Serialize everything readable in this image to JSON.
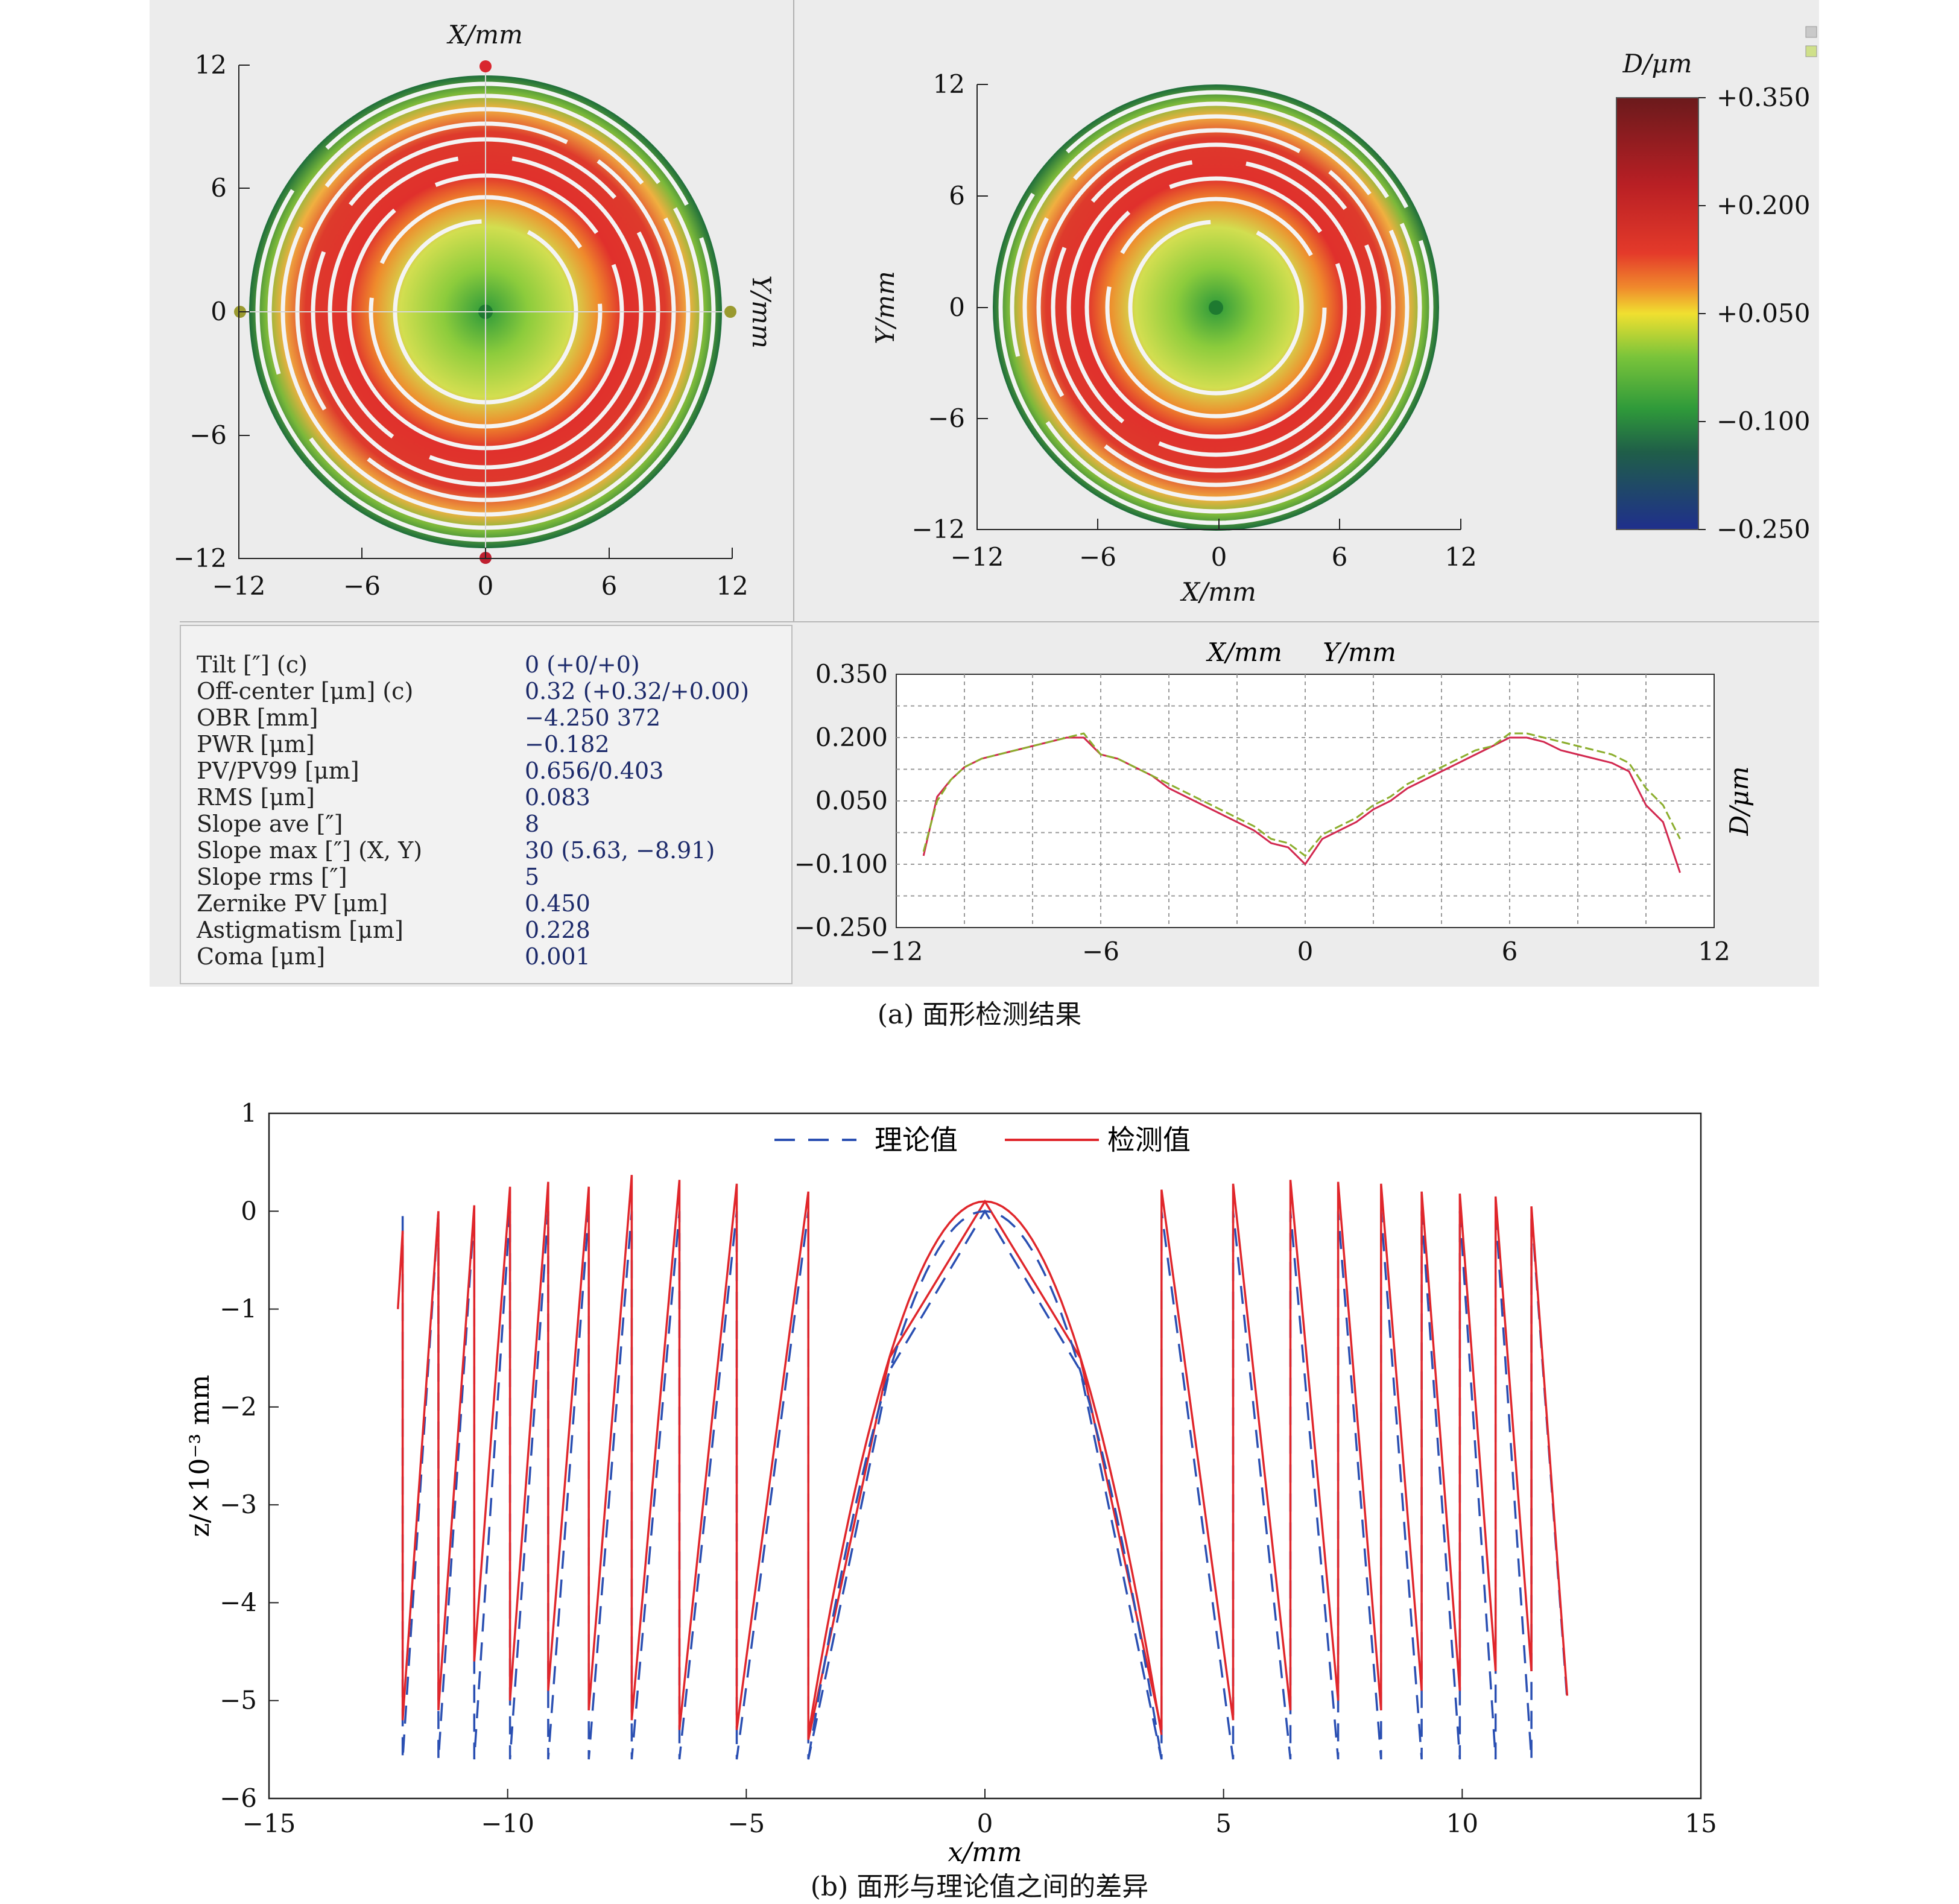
{
  "captions": {
    "a": "(a) 面形检测结果",
    "b": "(b) 面形与理论值之间的差异"
  },
  "map_left": {
    "title": "X/mm",
    "right_label": "Y/mm",
    "x_ticks": [
      "−12",
      "−6",
      "0",
      "6",
      "12"
    ],
    "y_ticks": [
      "12",
      "6",
      "0",
      "−6",
      "−12"
    ]
  },
  "map_right": {
    "xlabel": "X/mm",
    "ylabel": "Y/mm",
    "x_ticks": [
      "−12",
      "−6",
      "0",
      "6",
      "12"
    ],
    "y_ticks": [
      "12",
      "6",
      "0",
      "−6",
      "−12"
    ]
  },
  "colorbar": {
    "title": "D/μm",
    "ticks": [
      "+0.350",
      "+0.200",
      "+0.050",
      "−0.100",
      "−0.250"
    ],
    "colors": [
      "#6b1a1c",
      "#d8262a",
      "#f0e030",
      "#2f9a3a",
      "#1f2f8c"
    ]
  },
  "stats": [
    {
      "label": "Tilt [″] (c)",
      "value": "0 (+0/+0)"
    },
    {
      "label": "Off-center [μm] (c)",
      "value": "0.32 (+0.32/+0.00)"
    },
    {
      "label": "OBR [mm]",
      "value": "−4.250 372"
    },
    {
      "label": "PWR [μm]",
      "value": "−0.182"
    },
    {
      "label": "PV/PV99 [μm]",
      "value": "0.656/0.403"
    },
    {
      "label": "RMS [μm]",
      "value": "0.083"
    },
    {
      "label": "Slope ave [″]",
      "value": "8"
    },
    {
      "label": "Slope max [″] (X, Y)",
      "value": "30 (5.63, −8.91)"
    },
    {
      "label": "Slope rms [″]",
      "value": "5"
    },
    {
      "label": "Zernike PV [μm]",
      "value": "0.450"
    },
    {
      "label": "Astigmatism [μm]",
      "value": "0.228"
    },
    {
      "label": "Coma [μm]",
      "value": "0.001"
    }
  ],
  "chart_data": [
    {
      "type": "line",
      "title": "",
      "legend": [
        "X/mm",
        "Y/mm"
      ],
      "xlabel": "",
      "ylabel": "D/μm",
      "xlim": [
        -12,
        12
      ],
      "ylim": [
        -0.25,
        0.35
      ],
      "x_ticks": [
        "−12",
        "−6",
        "0",
        "6",
        "12"
      ],
      "y_ticks": [
        "0.350",
        "0.200",
        "0.050",
        "−0.100",
        "−0.250"
      ],
      "x": [
        -11.2,
        -10.8,
        -10.4,
        -10,
        -9.5,
        -9,
        -8.5,
        -8,
        -7.5,
        -7,
        -6.5,
        -6,
        -5.5,
        -5,
        -4.5,
        -4,
        -3.5,
        -3,
        -2.5,
        -2,
        -1.5,
        -1,
        -0.5,
        0,
        0.5,
        1,
        1.5,
        2,
        2.5,
        3,
        3.5,
        4,
        4.5,
        5,
        5.5,
        6,
        6.5,
        7,
        7.5,
        8,
        8.5,
        9,
        9.5,
        10,
        10.5,
        11
      ],
      "series": [
        {
          "name": "X/mm",
          "color": "#d2284f",
          "values": [
            -0.08,
            0.06,
            0.1,
            0.13,
            0.15,
            0.16,
            0.17,
            0.18,
            0.19,
            0.2,
            0.2,
            0.16,
            0.15,
            0.13,
            0.11,
            0.08,
            0.06,
            0.04,
            0.02,
            0.0,
            -0.02,
            -0.05,
            -0.06,
            -0.1,
            -0.04,
            -0.02,
            0.0,
            0.03,
            0.05,
            0.08,
            0.1,
            0.12,
            0.14,
            0.16,
            0.18,
            0.2,
            0.2,
            0.19,
            0.17,
            0.16,
            0.15,
            0.14,
            0.12,
            0.04,
            0.0,
            -0.12
          ]
        },
        {
          "name": "Y/mm",
          "color": "#8cae2e",
          "values": [
            -0.07,
            0.05,
            0.1,
            0.13,
            0.15,
            0.16,
            0.17,
            0.18,
            0.19,
            0.2,
            0.21,
            0.16,
            0.15,
            0.13,
            0.11,
            0.09,
            0.07,
            0.05,
            0.03,
            0.01,
            -0.01,
            -0.04,
            -0.05,
            -0.08,
            -0.03,
            -0.01,
            0.01,
            0.04,
            0.06,
            0.09,
            0.11,
            0.13,
            0.15,
            0.17,
            0.18,
            0.21,
            0.21,
            0.2,
            0.19,
            0.18,
            0.17,
            0.16,
            0.14,
            0.08,
            0.04,
            -0.04
          ]
        }
      ]
    },
    {
      "type": "line",
      "title": "",
      "xlabel": "x/mm",
      "ylabel": "z/×10⁻³ mm",
      "xlim": [
        -15,
        15
      ],
      "ylim": [
        -6,
        1
      ],
      "x_ticks": [
        "−15",
        "−10",
        "−5",
        "0",
        "5",
        "10",
        "15"
      ],
      "y_ticks": [
        "1",
        "0",
        "−1",
        "−2",
        "−3",
        "−4",
        "−5",
        "−6"
      ],
      "legend": [
        "理论值",
        "检测值"
      ],
      "zone_edges": [
        3.7,
        5.2,
        6.4,
        7.4,
        8.3,
        9.15,
        9.95,
        10.7,
        11.45,
        12.2
      ],
      "series": [
        {
          "name": "理论值",
          "color": "#2a4fb2",
          "style": "dashed",
          "points": [
            [
              -12.2,
              -0.05
            ],
            [
              -12.2,
              -5.6
            ],
            [
              -11.45,
              0
            ],
            [
              -11.45,
              -5.6
            ],
            [
              -10.7,
              0
            ],
            [
              -10.7,
              -5.6
            ],
            [
              -9.95,
              0
            ],
            [
              -9.95,
              -5.6
            ],
            [
              -9.15,
              0
            ],
            [
              -9.15,
              -5.6
            ],
            [
              -8.3,
              0
            ],
            [
              -8.3,
              -5.6
            ],
            [
              -7.4,
              0
            ],
            [
              -7.4,
              -5.6
            ],
            [
              -6.4,
              0
            ],
            [
              -6.4,
              -5.6
            ],
            [
              -5.2,
              0
            ],
            [
              -5.2,
              -5.6
            ],
            [
              -3.7,
              0
            ],
            [
              -3.7,
              -5.6
            ],
            [
              -2,
              -1.63
            ],
            [
              0,
              0
            ],
            [
              2,
              -1.63
            ],
            [
              3.7,
              -5.6
            ],
            [
              3.7,
              0
            ],
            [
              5.2,
              -5.6
            ],
            [
              5.2,
              0
            ],
            [
              6.4,
              -5.6
            ],
            [
              6.4,
              0
            ],
            [
              7.4,
              -5.6
            ],
            [
              7.4,
              0
            ],
            [
              8.3,
              -5.6
            ],
            [
              8.3,
              0
            ],
            [
              9.15,
              -5.6
            ],
            [
              9.15,
              0
            ],
            [
              9.95,
              -5.6
            ],
            [
              9.95,
              0
            ],
            [
              10.7,
              -5.6
            ],
            [
              10.7,
              0
            ],
            [
              11.45,
              -5.6
            ],
            [
              11.45,
              0
            ],
            [
              12.2,
              -5.0
            ]
          ]
        },
        {
          "name": "检测值",
          "color": "#e0262b",
          "style": "solid",
          "points": [
            [
              -12.3,
              -1.0
            ],
            [
              -12.2,
              -0.2
            ],
            [
              -12.2,
              -5.2
            ],
            [
              -11.45,
              0.0
            ],
            [
              -11.45,
              -5.1
            ],
            [
              -10.7,
              0.06
            ],
            [
              -10.7,
              -4.6
            ],
            [
              -9.95,
              0.25
            ],
            [
              -9.95,
              -5.0
            ],
            [
              -9.15,
              0.3
            ],
            [
              -9.15,
              -4.9
            ],
            [
              -8.3,
              0.25
            ],
            [
              -8.3,
              -5.1
            ],
            [
              -7.4,
              0.37
            ],
            [
              -7.4,
              -5.2
            ],
            [
              -6.4,
              0.32
            ],
            [
              -6.4,
              -5.3
            ],
            [
              -5.2,
              0.28
            ],
            [
              -5.2,
              -5.3
            ],
            [
              -3.7,
              0.2
            ],
            [
              -3.7,
              -5.4
            ],
            [
              -2,
              -1.5
            ],
            [
              0,
              0.1
            ],
            [
              2,
              -1.5
            ],
            [
              3.7,
              -5.3
            ],
            [
              3.7,
              0.22
            ],
            [
              5.2,
              -5.2
            ],
            [
              5.2,
              0.28
            ],
            [
              6.4,
              -5.1
            ],
            [
              6.4,
              0.32
            ],
            [
              7.4,
              -5.0
            ],
            [
              7.4,
              0.3
            ],
            [
              8.3,
              -5.1
            ],
            [
              8.3,
              0.28
            ],
            [
              9.15,
              -4.9
            ],
            [
              9.15,
              0.2
            ],
            [
              9.95,
              -4.9
            ],
            [
              9.95,
              0.18
            ],
            [
              10.7,
              -4.7
            ],
            [
              10.7,
              0.15
            ],
            [
              11.45,
              -4.7
            ],
            [
              11.45,
              0.05
            ],
            [
              12.2,
              -4.95
            ]
          ]
        }
      ]
    }
  ]
}
